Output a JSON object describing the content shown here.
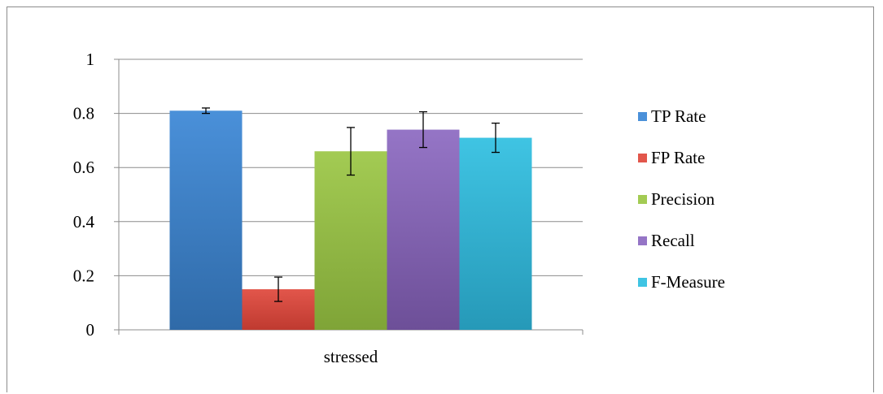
{
  "chart_data": {
    "type": "bar",
    "categories": [
      "stressed"
    ],
    "series": [
      {
        "name": "TP Rate",
        "value": 0.81,
        "error": 0.01,
        "color_top": "#4a90d9",
        "color_bottom": "#2f6aa8"
      },
      {
        "name": "FP Rate",
        "value": 0.15,
        "error": 0.045,
        "color_top": "#e2564b",
        "color_bottom": "#bf3a30"
      },
      {
        "name": "Precision",
        "value": 0.66,
        "error": 0.088,
        "color_top": "#a3cb53",
        "color_bottom": "#7fa437"
      },
      {
        "name": "Recall",
        "value": 0.74,
        "error": 0.066,
        "color_top": "#9575c6",
        "color_bottom": "#6d4f98"
      },
      {
        "name": "F-Measure",
        "value": 0.71,
        "error": 0.054,
        "color_top": "#3fc4e3",
        "color_bottom": "#2699b8"
      }
    ],
    "ylim": [
      0,
      1
    ],
    "yticks": [
      "0",
      "0.2",
      "0.4",
      "0.6",
      "0.8",
      "1"
    ],
    "grid": true,
    "legend_position": "right",
    "title": "",
    "xlabel": "",
    "ylabel": ""
  }
}
